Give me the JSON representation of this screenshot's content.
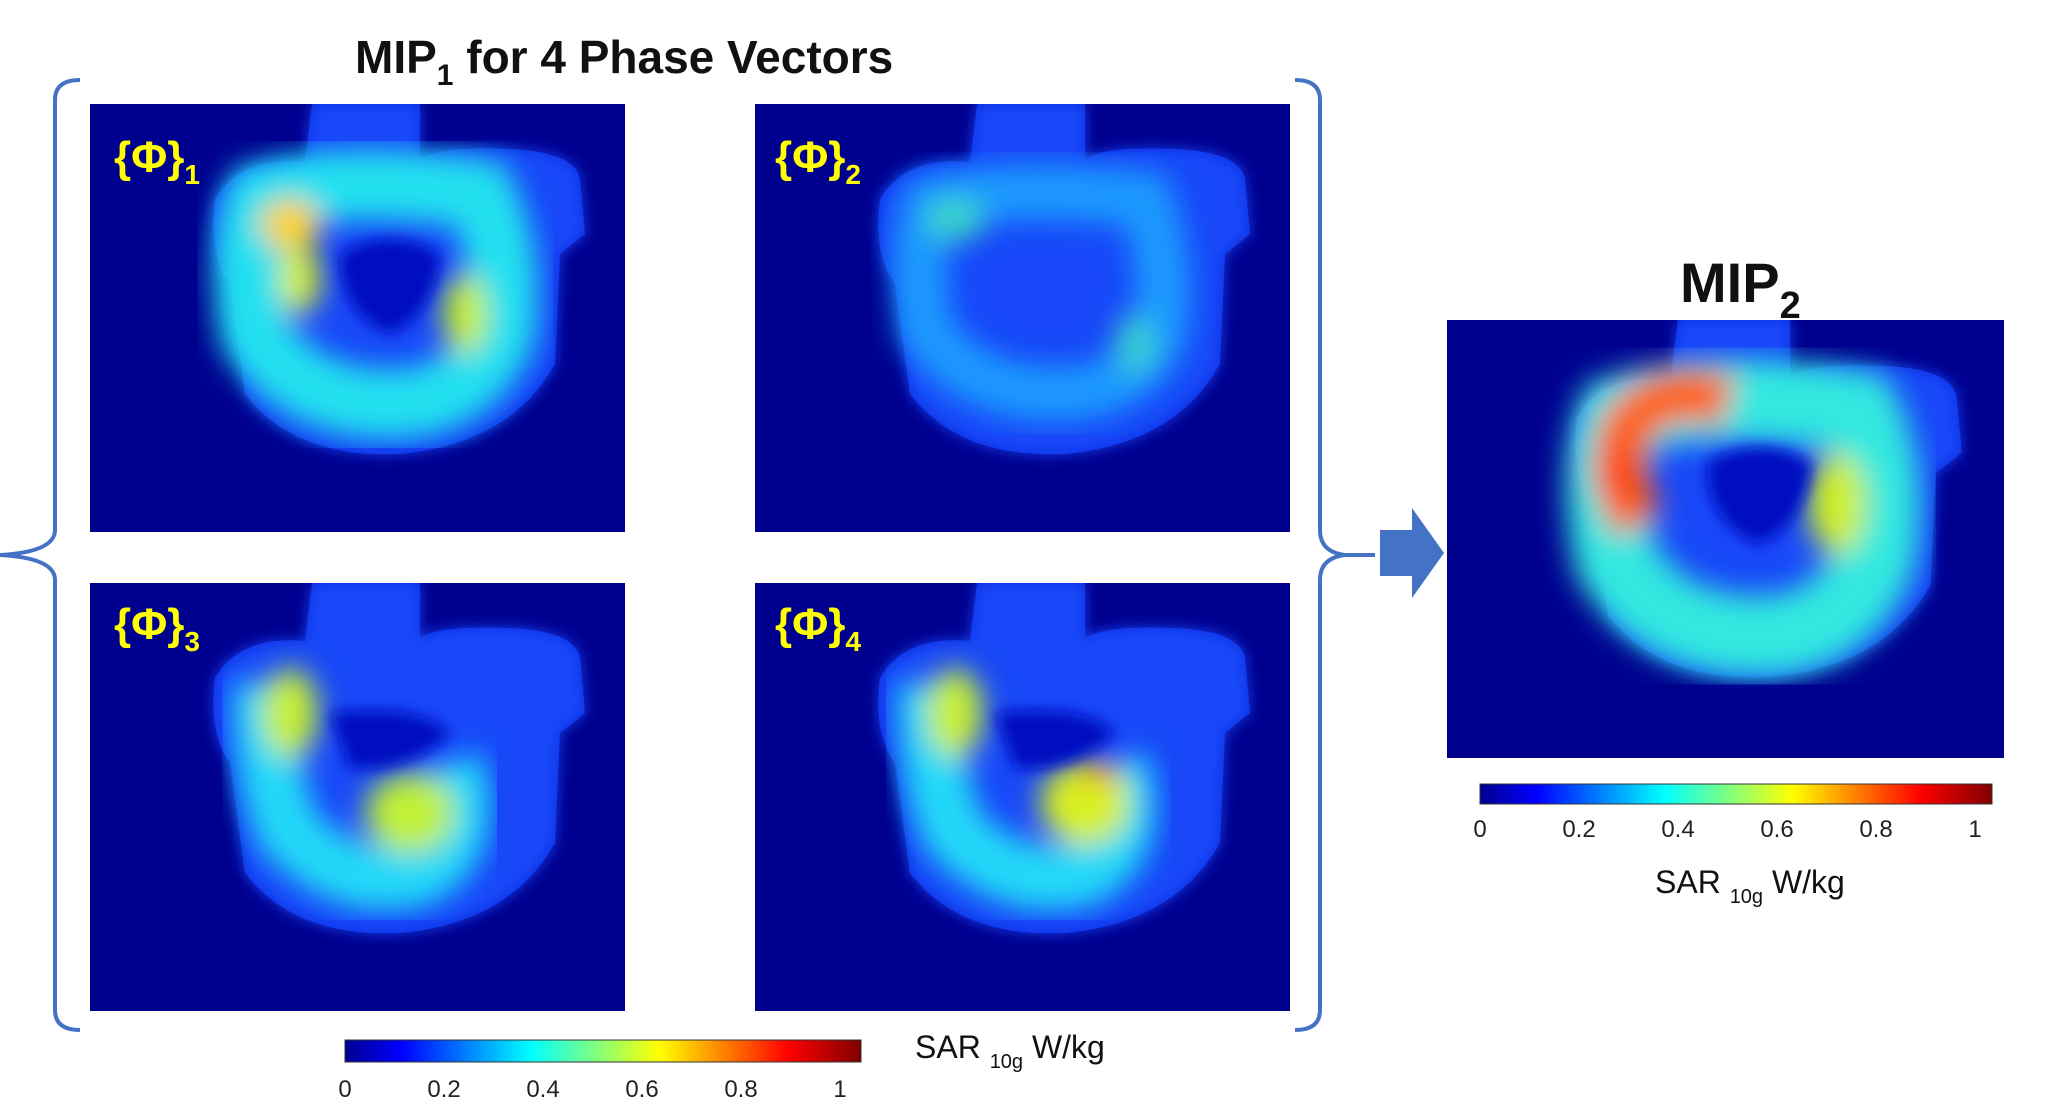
{
  "title_left": {
    "main": "MIP",
    "sub": "1",
    "rest": " for 4 Phase Vectors"
  },
  "title_right": {
    "main": "MIP",
    "sub": "2"
  },
  "panels": [
    {
      "label": "{Φ}",
      "sub": "1"
    },
    {
      "label": "{Φ}",
      "sub": "2"
    },
    {
      "label": "{Φ}",
      "sub": "3"
    },
    {
      "label": "{Φ}",
      "sub": "4"
    }
  ],
  "colorbar": {
    "colormap": "jet",
    "ticks": [
      "0",
      "0.2",
      "0.4",
      "0.6",
      "0.8",
      "1"
    ],
    "unit_main": "SAR ",
    "unit_sub": "10g",
    "unit_rest": " W/kg",
    "range": [
      0,
      1
    ]
  },
  "colors": {
    "bracket": "#4472c4",
    "arrow": "#4472c4",
    "label": "#ffff00",
    "background_field": "#00008f"
  }
}
